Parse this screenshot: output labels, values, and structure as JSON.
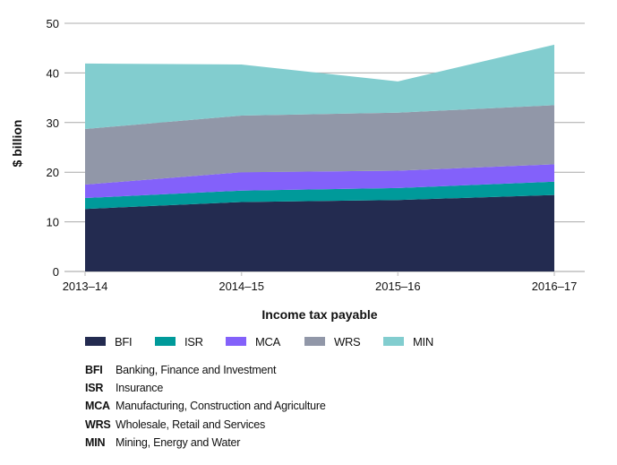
{
  "chart_data": {
    "type": "area",
    "stacked": true,
    "title": "",
    "xlabel": "Income tax payable",
    "ylabel": "$ billion",
    "ylim": [
      0,
      50
    ],
    "yticks": [
      0,
      10,
      20,
      30,
      40,
      50
    ],
    "grid": true,
    "categories": [
      "2013–14",
      "2014–15",
      "2015–16",
      "2016–17"
    ],
    "series": [
      {
        "key": "BFI",
        "name": "Banking, Finance and Investment",
        "color": "#232B50",
        "values": [
          12.6,
          14.0,
          14.4,
          15.4
        ]
      },
      {
        "key": "ISR",
        "name": "Insurance",
        "color": "#009A9A",
        "values": [
          2.2,
          2.3,
          2.4,
          2.7
        ]
      },
      {
        "key": "MCA",
        "name": "Manufacturing, Construction and Agriculture",
        "color": "#8361FA",
        "values": [
          2.7,
          3.7,
          3.5,
          3.5
        ]
      },
      {
        "key": "WRS",
        "name": "Wholesale, Retail and Services",
        "color": "#9197A8",
        "values": [
          11.2,
          11.4,
          11.7,
          11.9
        ]
      },
      {
        "key": "MIN",
        "name": "Mining, Energy and Water",
        "color": "#82CDCF",
        "values": [
          13.2,
          10.3,
          6.3,
          12.2
        ]
      }
    ],
    "legend_position": "bottom-left"
  },
  "legend": [
    {
      "label": "BFI",
      "color": "#232B50"
    },
    {
      "label": "ISR",
      "color": "#009A9A"
    },
    {
      "label": "MCA",
      "color": "#8361FA"
    },
    {
      "label": "WRS",
      "color": "#9197A8"
    },
    {
      "label": "MIN",
      "color": "#82CDCF"
    }
  ],
  "glossary": [
    {
      "abbr": "BFI",
      "text": "Banking, Finance and Investment"
    },
    {
      "abbr": "ISR",
      "text": "Insurance"
    },
    {
      "abbr": "MCA",
      "text": "Manufacturing, Construction and Agriculture"
    },
    {
      "abbr": "WRS",
      "text": "Wholesale, Retail and Services"
    },
    {
      "abbr": "MIN",
      "text": "Mining, Energy and Water"
    }
  ]
}
